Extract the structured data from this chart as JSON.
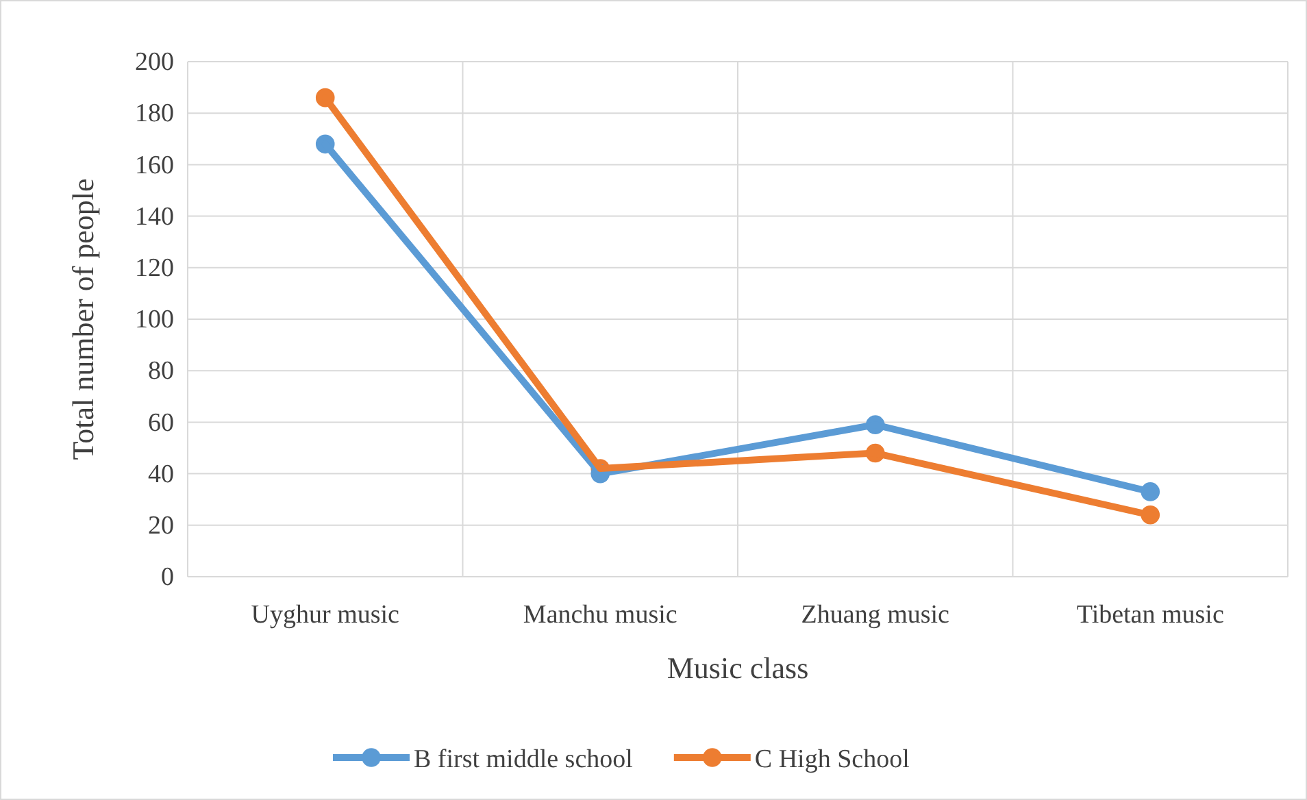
{
  "chart_data": {
    "type": "line",
    "xlabel": "Music class",
    "ylabel": "Total number of people",
    "categories": [
      "Uyghur music",
      "Manchu music",
      "Zhuang music",
      "Tibetan music"
    ],
    "series": [
      {
        "name": "B first middle school",
        "color": "#5b9bd5",
        "values": [
          168,
          40,
          59,
          33
        ]
      },
      {
        "name": "C High School",
        "color": "#ed7d31",
        "values": [
          186,
          42,
          48,
          24
        ]
      }
    ],
    "ylim": [
      0,
      200
    ],
    "yticks": [
      0,
      20,
      40,
      60,
      80,
      100,
      120,
      140,
      160,
      180,
      200
    ],
    "grid": true,
    "legend": "bottom",
    "marker": "circle",
    "line_style": "solid"
  }
}
